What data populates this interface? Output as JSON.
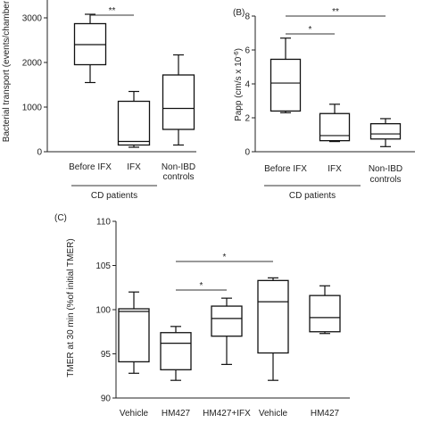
{
  "chart_data": [
    {
      "type": "box",
      "panel_label": "",
      "ylabel": "Bacterial transport (events/chamber",
      "ylim": [
        0,
        3500
      ],
      "yticks": [
        0,
        1000,
        2000,
        3000
      ],
      "categories": [
        "Before IFX",
        "IFX",
        "Non-IBD\ncontrols"
      ],
      "boxes": [
        {
          "min": 1550,
          "q1": 1950,
          "median": 2400,
          "q3": 2870,
          "max": 3080
        },
        {
          "min": 100,
          "q1": 150,
          "median": 230,
          "q3": 1130,
          "max": 1350
        },
        {
          "min": 150,
          "q1": 500,
          "median": 970,
          "q3": 1720,
          "max": 2170
        }
      ],
      "group_label": "CD patients",
      "significance": [
        {
          "from": 0,
          "to": 1,
          "label": "**"
        }
      ]
    },
    {
      "type": "box",
      "panel_label": "(B)",
      "ylabel": "Papp (cm/s x 10",
      "ylabel_sup": "-6",
      "ylabel_tail": ")",
      "ylim": [
        0,
        8
      ],
      "yticks": [
        0,
        2,
        4,
        6,
        8
      ],
      "categories": [
        "Before IFX",
        "IFX",
        "Non-IBD\ncontrols"
      ],
      "boxes": [
        {
          "min": 2.3,
          "q1": 2.4,
          "median": 4.05,
          "q3": 5.45,
          "max": 6.7
        },
        {
          "min": 0.6,
          "q1": 0.65,
          "median": 0.95,
          "q3": 2.25,
          "max": 2.8
        },
        {
          "min": 0.3,
          "q1": 0.75,
          "median": 1.05,
          "q3": 1.65,
          "max": 1.95
        }
      ],
      "group_label": "CD patients",
      "significance": [
        {
          "from": 0,
          "to": 1,
          "label": "*"
        },
        {
          "from": 0,
          "to": 2,
          "label": "**"
        }
      ]
    },
    {
      "type": "box",
      "panel_label": "(C)",
      "ylabel": "TMER at 30 min (%of initial TMER)",
      "ylim": [
        90,
        110
      ],
      "yticks": [
        90,
        95,
        100,
        105,
        110
      ],
      "categories": [
        "Vehicle",
        "HM427",
        "HM427+IFX",
        "Vehicle",
        "HM427"
      ],
      "boxes": [
        {
          "min": 92.8,
          "q1": 94.1,
          "median": 99.8,
          "q3": 100.1,
          "max": 102.0
        },
        {
          "min": 92.0,
          "q1": 93.2,
          "median": 96.2,
          "q3": 97.4,
          "max": 98.1
        },
        {
          "min": 93.8,
          "q1": 97.0,
          "median": 99.0,
          "q3": 100.4,
          "max": 101.3
        },
        {
          "min": 92.0,
          "q1": 95.1,
          "median": 100.9,
          "q3": 103.3,
          "max": 103.6
        },
        {
          "min": 97.3,
          "q1": 97.5,
          "median": 99.1,
          "q3": 101.6,
          "max": 102.7
        }
      ],
      "significance": [
        {
          "from": 1,
          "to": 2,
          "label": "*"
        },
        {
          "from": 1,
          "to": 3,
          "label": "*"
        }
      ]
    }
  ]
}
